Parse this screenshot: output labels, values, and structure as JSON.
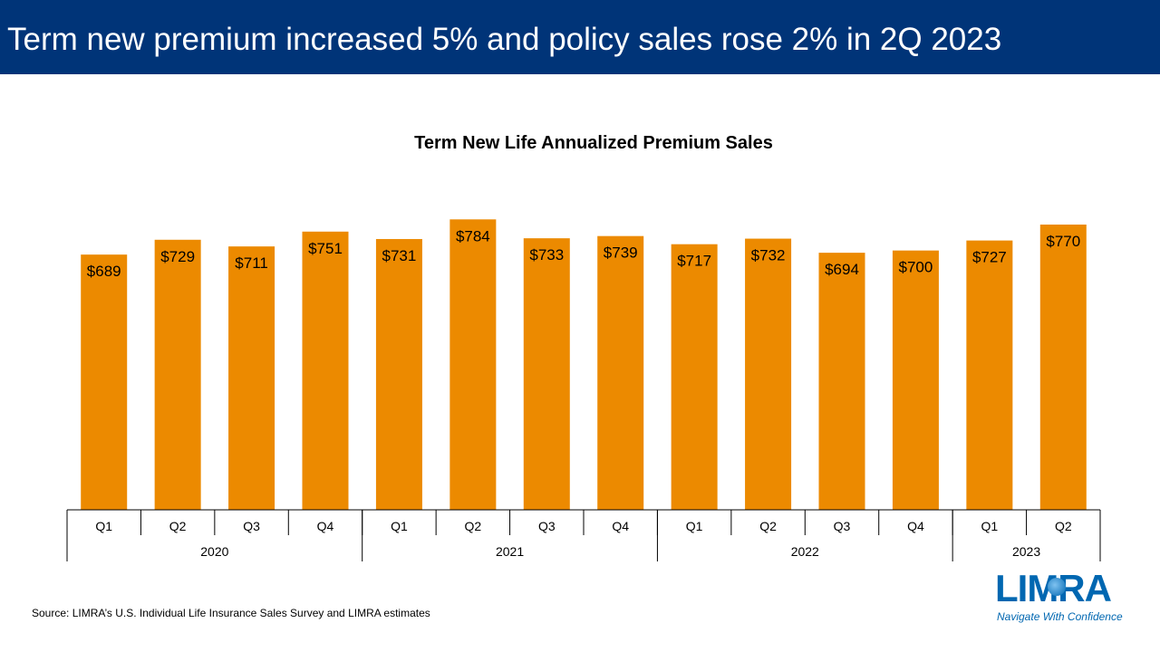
{
  "header": {
    "title": "Term new premium increased 5% and policy sales rose 2% in 2Q 2023"
  },
  "source": "Source: LIMRA’s U.S. Individual Life Insurance Sales Survey and LIMRA estimates",
  "logo": {
    "name": "LIMRA",
    "tagline": "Navigate With Confidence"
  },
  "colors": {
    "header": "#003478",
    "bar": "#EC8A00",
    "logo": "#0067B1"
  },
  "chart_data": {
    "type": "bar",
    "title": "Term New Life Annualized Premium Sales",
    "categories": [
      "Q1",
      "Q2",
      "Q3",
      "Q4",
      "Q1",
      "Q2",
      "Q3",
      "Q4",
      "Q1",
      "Q2",
      "Q3",
      "Q4",
      "Q1",
      "Q2"
    ],
    "groups": [
      {
        "label": "2020",
        "count": 4
      },
      {
        "label": "2021",
        "count": 4
      },
      {
        "label": "2022",
        "count": 4
      },
      {
        "label": "2023",
        "count": 2
      }
    ],
    "values": [
      689,
      729,
      711,
      751,
      731,
      784,
      733,
      739,
      717,
      732,
      694,
      700,
      727,
      770
    ],
    "data_labels": [
      "$689",
      "$729",
      "$711",
      "$751",
      "$731",
      "$784",
      "$733",
      "$739",
      "$717",
      "$732",
      "$694",
      "$700",
      "$727",
      "$770"
    ],
    "ylim": [
      0,
      880
    ],
    "grid": false,
    "legend": false
  }
}
